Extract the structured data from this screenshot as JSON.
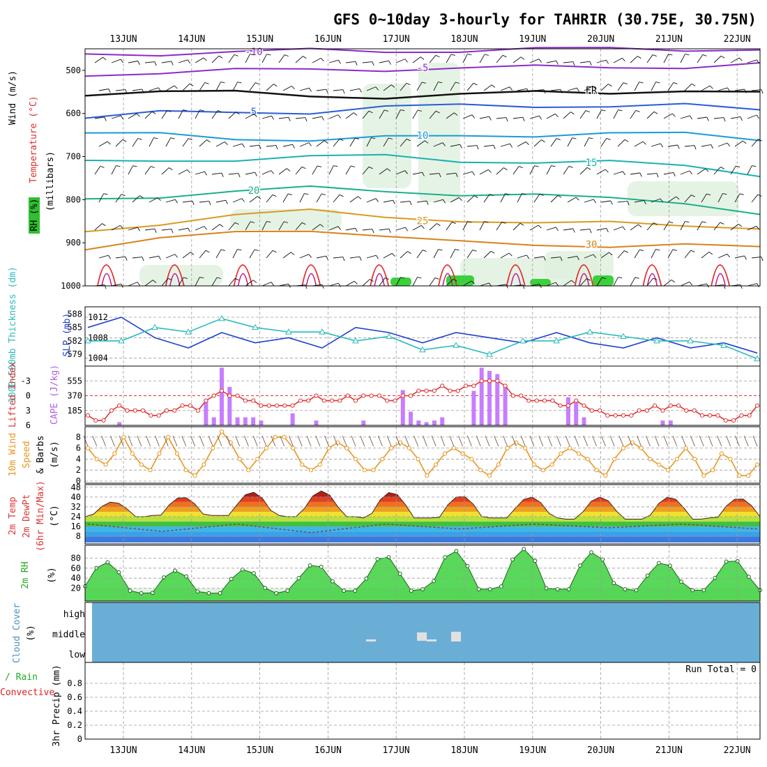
{
  "title": "GFS 0~10day 3-hourly for TAHRIR (30.75E, 30.75N)",
  "dates": [
    "13JUN",
    "14JUN",
    "15JUN",
    "16JUN",
    "17JUN",
    "18JUN",
    "19JUN",
    "20JUN",
    "21JUN",
    "22JUN"
  ],
  "colors": {
    "frame": "#000000",
    "rh_green": "#2fbf2f",
    "temp_label": "#e03030",
    "lifted": "#dd3333",
    "cape": "#c77dff",
    "slp": "#1f3fd0",
    "thickness": "#2bbbbb",
    "wind10": "#e8961e",
    "cloud": "#6aaed6",
    "precip_total": "#22aa22",
    "precip_conv": "#dd2222"
  },
  "labels": {
    "upper_wind": "Wind (m/s)",
    "upper_temp": "Temperature (°C)",
    "upper_rh": "RH (%)",
    "upper_axis": "(millibars)",
    "thickness": "1000~500mb Thickness (dm)",
    "slp": "SLP (mb)",
    "lifted": "Lifted Index",
    "cape": "CAPE (J/kg)",
    "wind10": "10m Wind",
    "wind10b": "Speed",
    "wind10c": "& Barbs",
    "wind10unit": "(m/s)",
    "temp2m": "2m Temp",
    "dewpt": "2m DewPt",
    "minmax": "(6hr Min/Max)",
    "temp_unit": "(°C)",
    "rh2m": "2m RH",
    "rh_unit": "(%)",
    "cloud": "Cloud Cover",
    "cloud_unit": "(%)",
    "cloud_high": "high",
    "cloud_middle": "middle",
    "cloud_low": "low",
    "precip_total": "Total / Rain",
    "precip_conv": "Convective",
    "precip_axis": "3hr Precip (mm)",
    "run_total": "Run Total = 0"
  },
  "chart_data": [
    {
      "type": "contour",
      "name": "upper_air",
      "y_axis": {
        "ticks": [
          500,
          600,
          700,
          800,
          900,
          1000
        ],
        "unit": "mb",
        "range": [
          450,
          1000
        ]
      },
      "x_axis": {
        "ticks": [
          "13JUN",
          "14JUN",
          "15JUN",
          "16JUN",
          "17JUN",
          "18JUN",
          "19JUN",
          "20JUN",
          "21JUN",
          "22JUN"
        ]
      },
      "temperature_contours": [
        {
          "label": "-10",
          "p": [
            462,
            460,
            458,
            455,
            455,
            453,
            452,
            451,
            450,
            450
          ]
        },
        {
          "label": "-5",
          "p": [
            508,
            505,
            502,
            498,
            496,
            495,
            494,
            492,
            490,
            486
          ]
        },
        {
          "label": "FR",
          "p": [
            553,
            552,
            552,
            556,
            562,
            560,
            550,
            548,
            548,
            556
          ]
        },
        {
          "label": "5",
          "p": [
            610,
            600,
            597,
            595,
            585,
            584,
            582,
            580,
            582,
            595
          ]
        },
        {
          "label": "10",
          "p": [
            650,
            648,
            655,
            662,
            658,
            652,
            648,
            646,
            650,
            660
          ]
        },
        {
          "label": "15",
          "p": [
            715,
            708,
            705,
            702,
            700,
            708,
            712,
            715,
            722,
            740
          ]
        },
        {
          "label": "20",
          "p": [
            800,
            790,
            780,
            775,
            780,
            785,
            790,
            800,
            805,
            830
          ]
        },
        {
          "label": "25",
          "p": [
            870,
            855,
            840,
            825,
            835,
            850,
            860,
            850,
            855,
            870
          ]
        },
        {
          "label": "30",
          "p": [
            910,
            890,
            880,
            870,
            880,
            900,
            910,
            905,
            900,
            915
          ]
        }
      ]
    },
    {
      "type": "line",
      "name": "slp_thickness",
      "series": [
        {
          "name": "SLP (mb)",
          "axis": "right",
          "ticks": [
            1004,
            1008,
            1012
          ],
          "values": [
            1010,
            1012,
            1008,
            1006,
            1009,
            1007,
            1008,
            1006,
            1010,
            1009,
            1007,
            1009,
            1008,
            1007,
            1009,
            1007,
            1006,
            1008,
            1006,
            1007,
            1005
          ]
        },
        {
          "name": "1000~500mb Thickness (dm)",
          "axis": "left",
          "ticks": [
            579,
            582,
            585,
            588
          ],
          "values": [
            582,
            582,
            585,
            584,
            587,
            585,
            584,
            584,
            582,
            583,
            580,
            581,
            579,
            582,
            582,
            584,
            583,
            582,
            582,
            581,
            578
          ]
        }
      ]
    },
    {
      "type": "bar",
      "name": "cape_lifted",
      "lifted_axis": {
        "ticks": [
          -3,
          0,
          3,
          6
        ],
        "range": [
          6,
          -6
        ]
      },
      "cape_axis": {
        "ticks": [
          185,
          370,
          555
        ],
        "range": [
          0,
          740
        ]
      },
      "cape_values": [
        0,
        0,
        0,
        0,
        40,
        0,
        0,
        0,
        0,
        0,
        0,
        0,
        0,
        0,
        0,
        300,
        100,
        720,
        480,
        100,
        100,
        100,
        60,
        0,
        0,
        0,
        150,
        0,
        0,
        60,
        0,
        0,
        0,
        0,
        0,
        60,
        0,
        0,
        0,
        0,
        440,
        170,
        60,
        40,
        60,
        100,
        0,
        0,
        0,
        430,
        720,
        680,
        640,
        500,
        0,
        0,
        0,
        0,
        0,
        0,
        0,
        350,
        300,
        100,
        0,
        0,
        0,
        0,
        0,
        0,
        0,
        0,
        0,
        60,
        60,
        0,
        0,
        0,
        0,
        0,
        0,
        0,
        0,
        0,
        0,
        0
      ],
      "lifted_values": [
        4,
        5,
        5,
        3,
        2,
        3,
        3,
        3,
        4,
        4,
        3,
        3,
        2,
        2,
        3,
        1,
        0,
        -1,
        0,
        0,
        1,
        1,
        2,
        2,
        2,
        2,
        2,
        1,
        1,
        0,
        1,
        1,
        1,
        0,
        1,
        0,
        0,
        0,
        1,
        1,
        0,
        0,
        -1,
        -1,
        -1,
        -2,
        -1,
        -1,
        -2,
        -2,
        -3,
        -3,
        -3,
        -2,
        0,
        0,
        1,
        1,
        1,
        1,
        2,
        2,
        1,
        2,
        3,
        3,
        4,
        4,
        4,
        4,
        3,
        3,
        2,
        3,
        2,
        2,
        3,
        3,
        4,
        4,
        4,
        5,
        5,
        4,
        4,
        2
      ]
    },
    {
      "type": "line",
      "name": "wind10m",
      "y_axis": {
        "ticks": [
          0,
          2,
          4,
          6,
          8
        ],
        "unit": "m/s"
      },
      "values": [
        6,
        4,
        3,
        5,
        8,
        5,
        3,
        2,
        5,
        8,
        5,
        2,
        1,
        3,
        6,
        9,
        7,
        4,
        2,
        4,
        6,
        8,
        8,
        6,
        3,
        2,
        3,
        6,
        7,
        6,
        4,
        2,
        2,
        4,
        6,
        7,
        6,
        4,
        1,
        3,
        5,
        6,
        5,
        4,
        2,
        1,
        3,
        6,
        7,
        6,
        3,
        2,
        3,
        5,
        6,
        5,
        4,
        2,
        1,
        4,
        6,
        7,
        6,
        4,
        3,
        2,
        4,
        6,
        4,
        1,
        2,
        5,
        4,
        1,
        1,
        3
      ]
    },
    {
      "type": "area",
      "name": "temp2m",
      "y_axis": {
        "ticks": [
          8,
          16,
          24,
          32,
          40,
          48
        ],
        "unit": "°C"
      },
      "temp_daily_max": [
        36,
        40,
        44,
        45,
        44,
        41,
        40,
        40,
        40,
        39
      ],
      "temp_daily_min": [
        24,
        25,
        25,
        24,
        23,
        23,
        23,
        22,
        22,
        23
      ],
      "dewpoint": [
        18,
        12,
        18,
        11,
        18,
        14,
        18,
        15,
        18,
        14
      ]
    },
    {
      "type": "area",
      "name": "rh2m",
      "y_axis": {
        "ticks": [
          20,
          40,
          60,
          80
        ],
        "unit": "%"
      },
      "daily_max": [
        72,
        55,
        58,
        68,
        85,
        95,
        98,
        92,
        72,
        78
      ],
      "daily_min": [
        15,
        10,
        10,
        15,
        15,
        18,
        18,
        18,
        16,
        16
      ]
    },
    {
      "type": "cloud",
      "name": "cloud_cover",
      "levels": [
        "high",
        "middle",
        "low"
      ]
    },
    {
      "type": "bar",
      "name": "precip",
      "y_axis": {
        "ticks": [
          0,
          0.2,
          0.4,
          0.6,
          0.8
        ],
        "unit": "mm"
      },
      "values": []
    }
  ]
}
